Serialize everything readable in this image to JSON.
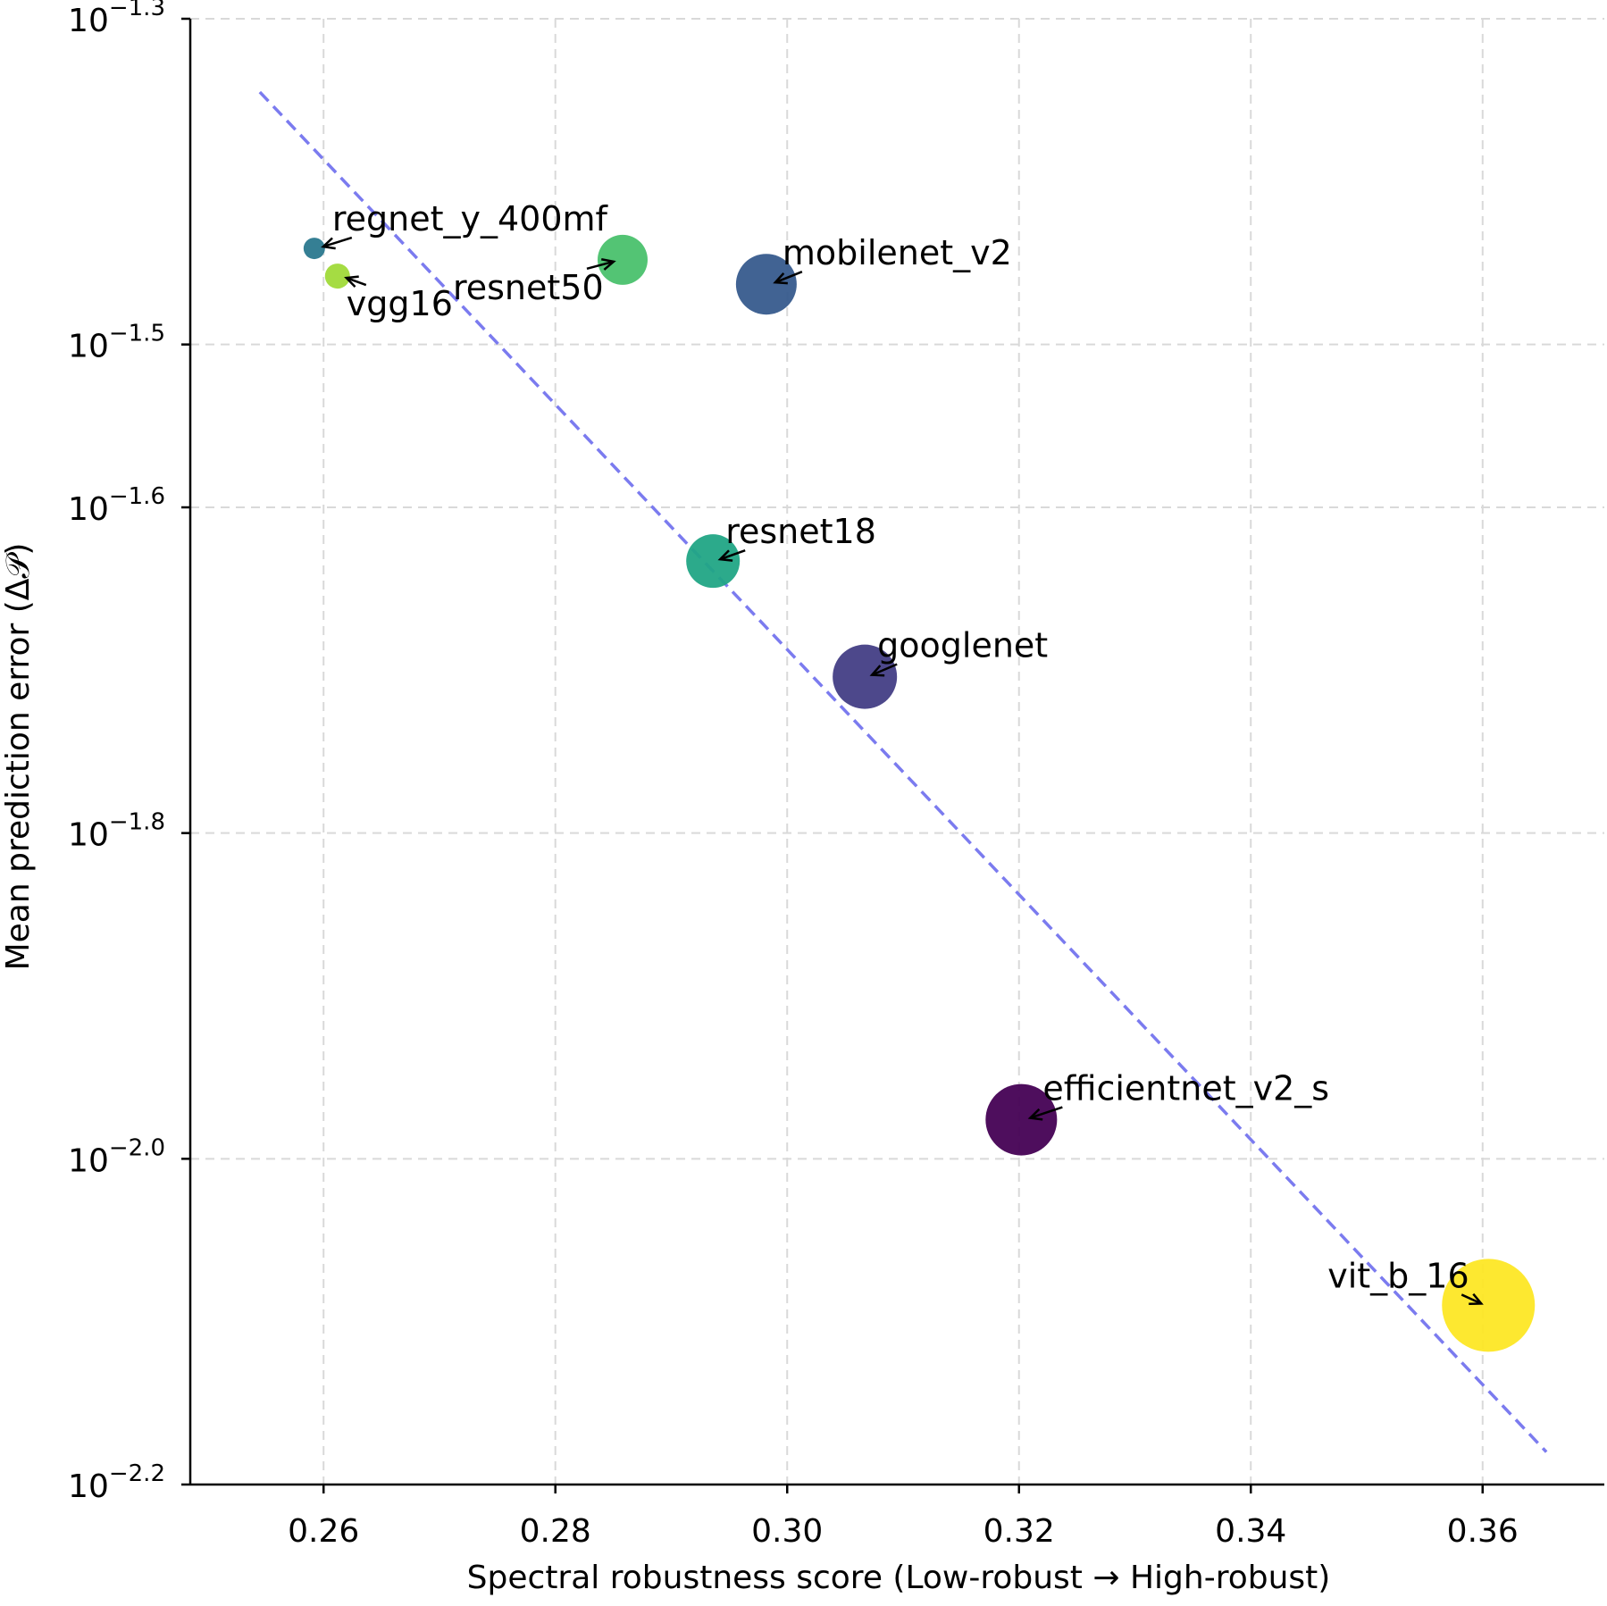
{
  "chart_data": {
    "type": "scatter",
    "title": "",
    "xlabel": "Spectral robustness score (Low-robust → High-robust)",
    "ylabel": "Mean prediction error (Δ𝒫)",
    "xlim": [
      0.2485,
      0.3705
    ],
    "ylim_log10": [
      -2.2,
      -1.3
    ],
    "yscale": "log",
    "grid": true,
    "x_ticks": [
      0.26,
      0.28,
      0.3,
      0.32,
      0.34,
      0.36
    ],
    "x_tick_labels": [
      "0.26",
      "0.28",
      "0.30",
      "0.32",
      "0.34",
      "0.36"
    ],
    "y_ticks": [
      {
        "base": "10",
        "exp": "−1.3",
        "log10": -1.3
      },
      {
        "base": "10",
        "exp": "−1.5",
        "log10": -1.5
      },
      {
        "base": "10",
        "exp": "−1.6",
        "log10": -1.6
      },
      {
        "base": "10",
        "exp": "−1.8",
        "log10": -1.8
      },
      {
        "base": "10",
        "exp": "−2.0",
        "log10": -2.0
      },
      {
        "base": "10",
        "exp": "−2.2",
        "log10": -2.2
      }
    ],
    "series": [
      {
        "name": "regnet_y_400mf",
        "x": 0.2592,
        "log10_y": -1.441,
        "size": 0.3,
        "color": "#2a788e"
      },
      {
        "name": "vgg16",
        "x": 0.2612,
        "log10_y": -1.458,
        "size": 0.35,
        "color": "#a0da39"
      },
      {
        "name": "resnet50",
        "x": 0.2858,
        "log10_y": -1.448,
        "size": 0.7,
        "color": "#4ac16d"
      },
      {
        "name": "mobilenet_v2",
        "x": 0.2982,
        "log10_y": -1.463,
        "size": 0.85,
        "color": "#375b8d"
      },
      {
        "name": "resnet18",
        "x": 0.2936,
        "log10_y": -1.633,
        "size": 0.75,
        "color": "#21a585"
      },
      {
        "name": "googlenet",
        "x": 0.3067,
        "log10_y": -1.704,
        "size": 0.9,
        "color": "#433e85"
      },
      {
        "name": "efficientnet_v2_s",
        "x": 0.3202,
        "log10_y": -1.976,
        "size": 1.0,
        "color": "#440154"
      },
      {
        "name": "vit_b_16",
        "x": 0.3605,
        "log10_y": -2.09,
        "size": 1.3,
        "color": "#fde725"
      }
    ],
    "trend_line": {
      "x": [
        0.2545,
        0.3655
      ],
      "log10_y": [
        -1.345,
        -2.18
      ],
      "color": "#7b7bef",
      "style": "dashed"
    }
  }
}
